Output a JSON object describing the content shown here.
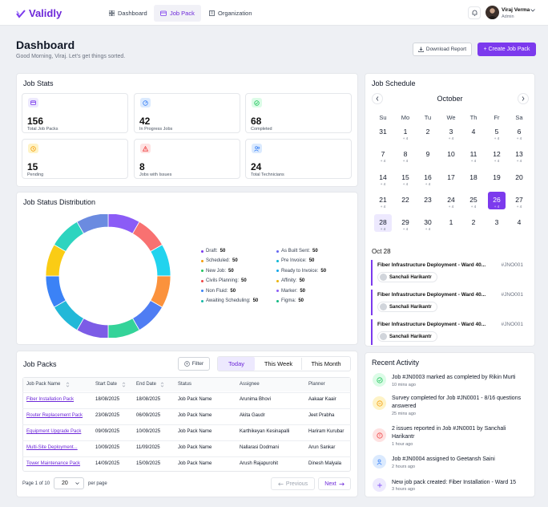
{
  "app": {
    "name": "Validly"
  },
  "nav": [
    {
      "label": "Dashboard",
      "icon": "grid-icon"
    },
    {
      "label": "Job Pack",
      "icon": "box-icon"
    },
    {
      "label": "Organization",
      "icon": "building-icon"
    }
  ],
  "user": {
    "name": "Viraj Verma",
    "role": "Admin"
  },
  "header": {
    "title": "Dashboard",
    "greeting": "Good Morning, Viraj. Let's get things sorted.",
    "download_label": "Download Report",
    "create_label": "+ Create Job Pack"
  },
  "job_stats": {
    "title": "Job Stats",
    "items": [
      {
        "value": "156",
        "label": "Total Job Packs",
        "icon": "box-icon",
        "color": "#a78bfa"
      },
      {
        "value": "42",
        "label": "In Progress Jobs",
        "icon": "progress-icon",
        "color": "#60a5fa"
      },
      {
        "value": "68",
        "label": "Completed",
        "icon": "check-circle-icon",
        "color": "#34d399"
      },
      {
        "value": "15",
        "label": "Pending",
        "icon": "clock-icon",
        "color": "#fbbf24"
      },
      {
        "value": "8",
        "label": "Jobs with Issues",
        "icon": "warning-icon",
        "color": "#f87171"
      },
      {
        "value": "24",
        "label": "Total Technicians",
        "icon": "users-icon",
        "color": "#60a5fa"
      }
    ]
  },
  "distribution": {
    "title": "Job Status Distribution",
    "items": [
      {
        "label": "Draft:",
        "value": "50",
        "color": "#7c3aed"
      },
      {
        "label": "Scheduled:",
        "value": "50",
        "color": "#f59e0b"
      },
      {
        "label": "New Job:",
        "value": "50",
        "color": "#22c55e"
      },
      {
        "label": "Civils Planning:",
        "value": "50",
        "color": "#ef4444"
      },
      {
        "label": "Non Fluid:",
        "value": "50",
        "color": "#3b82f6"
      },
      {
        "label": "Awaiting Scheduling:",
        "value": "50",
        "color": "#14b8a6"
      },
      {
        "label": "As Built Sent:",
        "value": "50",
        "color": "#6366f1"
      },
      {
        "label": "Pre Invoice:",
        "value": "50",
        "color": "#06b6d4"
      },
      {
        "label": "Ready to Invoice:",
        "value": "50",
        "color": "#0ea5e9"
      },
      {
        "label": "Affinity:",
        "value": "50",
        "color": "#eab308"
      },
      {
        "label": "Marker:",
        "value": "50",
        "color": "#8b5cf6"
      },
      {
        "label": "Figma:",
        "value": "50",
        "color": "#10b981"
      }
    ]
  },
  "chart_data": {
    "type": "pie",
    "title": "Job Status Distribution",
    "categories": [
      "Draft",
      "Scheduled",
      "New Job",
      "Civils Planning",
      "Non Fluid",
      "Awaiting Scheduling",
      "As Built Sent",
      "Pre Invoice",
      "Ready to Invoice",
      "Affinity",
      "Marker",
      "Figma"
    ],
    "values": [
      50,
      50,
      50,
      50,
      50,
      50,
      50,
      50,
      50,
      50,
      50,
      50
    ],
    "ring_colors": [
      "#8b5cf6",
      "#f87171",
      "#22d3ee",
      "#fb923c",
      "#4f7df3",
      "#34d399",
      "#7c5ce6",
      "#22b8d8",
      "#3b82f6",
      "#facc15",
      "#2dd4bf",
      "#6b8be0"
    ],
    "legend": "right"
  },
  "job_packs": {
    "title": "Job Packs",
    "filter_label": "Filter",
    "tabs": [
      "Today",
      "This Week",
      "This Month"
    ],
    "columns": [
      "Job Pack Name",
      "Start Date",
      "End Date",
      "Status",
      "Assignee",
      "Planner"
    ],
    "rows": [
      [
        "Fiber Installation Pack",
        "18/08/2025",
        "18/08/2025",
        "Job Pack Name",
        "Arunima Bhovi",
        "Aakaar Kaair"
      ],
      [
        "Router Replacement Pack",
        "23/08/2025",
        "06/09/2025",
        "Job Pack Name",
        "Akita Gaudr",
        "Jeet Prabha"
      ],
      [
        "Equipment Upgrade Pack",
        "09/09/2025",
        "10/09/2025",
        "Job Pack Name",
        "Karthikeyan Kesinapalli",
        "Hariram Kurubar"
      ],
      [
        "Multi-Site Deployment...",
        "10/09/2025",
        "11/09/2025",
        "Job Pack Name",
        "Nallarasi Dodmani",
        "Arun Sankar"
      ],
      [
        "Tower Maintenance Pack",
        "14/09/2025",
        "15/09/2025",
        "Job Pack Name",
        "Arush Rajapurohit",
        "Dinesh Malyala"
      ]
    ],
    "page_info": "Page 1 of 10",
    "per_page_value": "20",
    "per_page_label": "per page",
    "prev_label": "Previous",
    "next_label": "Next"
  },
  "schedule": {
    "title": "Job Schedule",
    "month": "October",
    "dow": [
      "Su",
      "Mo",
      "Tu",
      "We",
      "Th",
      "Fr",
      "Sa"
    ],
    "weeks": [
      [
        {
          "d": "31",
          "m": ""
        },
        {
          "d": "1",
          "m": "+ 4"
        },
        {
          "d": "2",
          "m": ""
        },
        {
          "d": "3",
          "m": "+ 4"
        },
        {
          "d": "4",
          "m": ""
        },
        {
          "d": "5",
          "m": "+ 4"
        },
        {
          "d": "6",
          "m": "+ 4"
        }
      ],
      [
        {
          "d": "7",
          "m": "+ 4"
        },
        {
          "d": "8",
          "m": "+ 4"
        },
        {
          "d": "9",
          "m": ""
        },
        {
          "d": "10",
          "m": ""
        },
        {
          "d": "11",
          "m": "+ 4"
        },
        {
          "d": "12",
          "m": "+ 4"
        },
        {
          "d": "13",
          "m": "+ 4"
        }
      ],
      [
        {
          "d": "14",
          "m": "+ 4"
        },
        {
          "d": "15",
          "m": "+ 4"
        },
        {
          "d": "16",
          "m": "+ 4"
        },
        {
          "d": "17",
          "m": ""
        },
        {
          "d": "18",
          "m": ""
        },
        {
          "d": "19",
          "m": ""
        },
        {
          "d": "20",
          "m": ""
        }
      ],
      [
        {
          "d": "21",
          "m": "+ 4"
        },
        {
          "d": "22",
          "m": ""
        },
        {
          "d": "23",
          "m": ""
        },
        {
          "d": "24",
          "m": "+ 4"
        },
        {
          "d": "25",
          "m": "+ 4"
        },
        {
          "d": "26",
          "m": "+ 4"
        },
        {
          "d": "27",
          "m": "+ 4"
        }
      ],
      [
        {
          "d": "28",
          "m": "+ 4"
        },
        {
          "d": "29",
          "m": "+ 4"
        },
        {
          "d": "30",
          "m": "+ 4"
        },
        {
          "d": "1",
          "m": ""
        },
        {
          "d": "2",
          "m": ""
        },
        {
          "d": "3",
          "m": ""
        },
        {
          "d": "4",
          "m": ""
        }
      ]
    ],
    "selected_day": "26",
    "today_day": "28",
    "date_heading": "Oct 28",
    "events": [
      {
        "title": "Fiber Infrastructure Deployment - Ward 40...",
        "code": "#JNO001",
        "assignee": "Sanchali Harikantr"
      },
      {
        "title": "Fiber Infrastructure Deployment - Ward 40...",
        "code": "#JNO001",
        "assignee": "Sanchali Harikantr"
      },
      {
        "title": "Fiber Infrastructure Deployment - Ward 40...",
        "code": "#JNO001",
        "assignee": "Sanchali Harikantr"
      }
    ]
  },
  "activity": {
    "title": "Recent Activity",
    "items": [
      {
        "text": "Job #JN0003 marked as completed by Rikin Murti",
        "time": "10 mins ago",
        "icon": "check-circle-icon",
        "color": "#22c55e",
        "bg": "#dcfce7"
      },
      {
        "text": "Survey completed for Job #JN0001 - 8/16 questions answered",
        "time": "25 mins ago",
        "icon": "survey-icon",
        "color": "#f59e0b",
        "bg": "#fef3c7"
      },
      {
        "text": "2 issues reported in Job #JN0001 by Sanchali Harikantr",
        "time": "1 hour ago",
        "icon": "alert-icon",
        "color": "#ef4444",
        "bg": "#fee2e2"
      },
      {
        "text": "Job #JN0004 assigned to Geetansh Saini",
        "time": "2 hours ago",
        "icon": "user-assign-icon",
        "color": "#3b82f6",
        "bg": "#dbeafe"
      },
      {
        "text": "New job pack created: Fiber Installation - Ward 15",
        "time": "3 hours ago",
        "icon": "plus-icon",
        "color": "#8b5cf6",
        "bg": "#ede9fe"
      }
    ]
  }
}
